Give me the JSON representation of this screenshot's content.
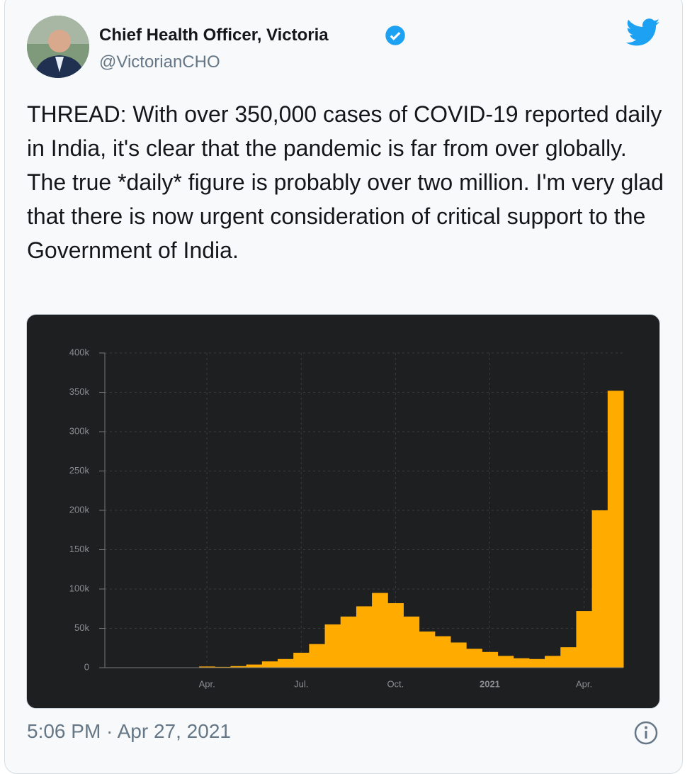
{
  "header": {
    "name": "Chief Health Officer, Victoria",
    "handle": "@VictorianCHO"
  },
  "tweet": {
    "text": "THREAD: With over 350,000 cases of COVID-19 reported daily in India, it's clear that the pandemic is far from over globally. The true *daily* figure is probably over two million. I'm very glad that there is now urgent consideration of critical support to the Government of India.",
    "timestamp": "5:06 PM · Apr 27, 2021"
  },
  "chart_data": {
    "type": "bar",
    "categories": [
      null,
      null,
      null,
      null,
      null,
      null,
      "Apr.",
      null,
      null,
      null,
      null,
      null,
      "Jul.",
      null,
      null,
      null,
      null,
      null,
      "Oct.",
      null,
      null,
      null,
      null,
      null,
      "2021",
      null,
      null,
      null,
      null,
      null,
      "Apr.",
      null,
      null
    ],
    "values": [
      0,
      0,
      0,
      0,
      0,
      100,
      1500,
      1000,
      2000,
      4000,
      8000,
      11000,
      19000,
      30000,
      55000,
      65000,
      78000,
      95000,
      82000,
      65000,
      46000,
      40000,
      32000,
      24000,
      20000,
      15000,
      12000,
      11000,
      15000,
      26000,
      72000,
      200000,
      352000
    ],
    "color": "#ffab00",
    "ylim": [
      0,
      400000
    ],
    "yticks": [
      0,
      {
        "value": 50000,
        "label": "50k"
      },
      {
        "value": 100000,
        "label": "100k"
      },
      {
        "value": 150000,
        "label": "150k"
      },
      {
        "value": 200000,
        "label": "200k"
      },
      {
        "value": 250000,
        "label": "250k"
      },
      {
        "value": 300000,
        "label": "300k"
      },
      {
        "value": 350000,
        "label": "350k"
      },
      {
        "value": 400000,
        "label": "400k"
      }
    ],
    "grid": true
  }
}
